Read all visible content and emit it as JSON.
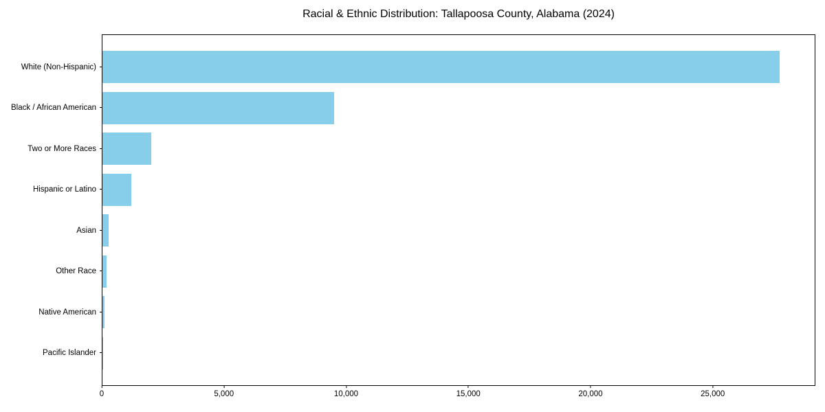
{
  "title": "Racial & Ethnic Distribution: Tallapoosa County, Alabama (2024)",
  "chart_data": {
    "type": "bar",
    "orientation": "horizontal",
    "title": "Racial & Ethnic Distribution: Tallapoosa County, Alabama (2024)",
    "xlabel": "",
    "ylabel": "",
    "categories": [
      "White (Non-Hispanic)",
      "Black / African American",
      "Two or More Races",
      "Hispanic or Latino",
      "Asian",
      "Other Race",
      "Native American",
      "Pacific Islander"
    ],
    "values": [
      27770,
      9500,
      2000,
      1180,
      260,
      160,
      95,
      15
    ],
    "xlim": [
      0,
      29200
    ],
    "x_ticks": [
      0,
      5000,
      10000,
      15000,
      20000,
      25000
    ],
    "x_tick_labels": [
      "0",
      "5,000",
      "10,000",
      "15,000",
      "20,000",
      "25,000"
    ],
    "grid": false,
    "legend": null
  },
  "colors": {
    "bar": "#87CEEB",
    "axis": "#000000",
    "text": "#000000",
    "background": "#FFFFFF"
  }
}
